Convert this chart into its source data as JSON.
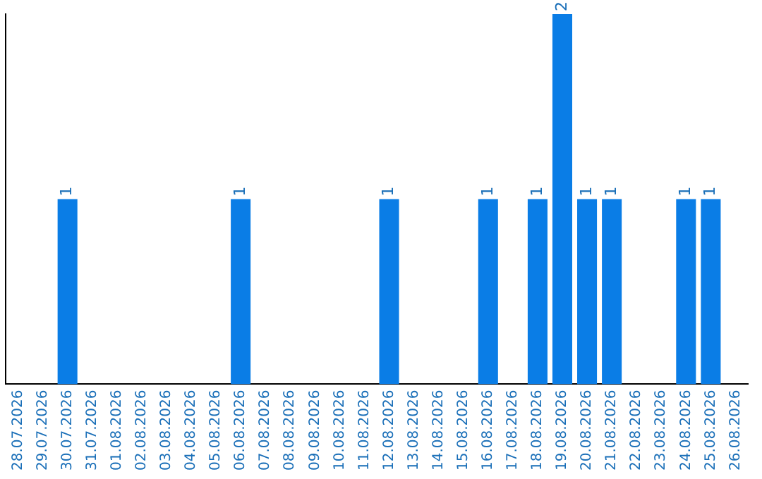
{
  "chart_data": {
    "type": "bar",
    "categories": [
      "28.07.2026",
      "29.07.2026",
      "30.07.2026",
      "31.07.2026",
      "01.08.2026",
      "02.08.2026",
      "03.08.2026",
      "04.08.2026",
      "05.08.2026",
      "06.08.2026",
      "07.08.2026",
      "08.08.2026",
      "09.08.2026",
      "10.08.2026",
      "11.08.2026",
      "12.08.2026",
      "13.08.2026",
      "14.08.2026",
      "15.08.2026",
      "16.08.2026",
      "17.08.2026",
      "18.08.2026",
      "19.08.2026",
      "20.08.2026",
      "21.08.2026",
      "22.08.2026",
      "23.08.2026",
      "24.08.2026",
      "25.08.2026",
      "26.08.2026"
    ],
    "values": [
      0,
      0,
      1,
      0,
      0,
      0,
      0,
      0,
      0,
      1,
      0,
      0,
      0,
      0,
      0,
      1,
      0,
      0,
      0,
      1,
      0,
      1,
      2,
      1,
      1,
      0,
      0,
      1,
      1,
      0
    ],
    "value_labels": [
      null,
      null,
      "1",
      null,
      null,
      null,
      null,
      null,
      null,
      "1",
      null,
      null,
      null,
      null,
      null,
      "1",
      null,
      null,
      null,
      "1",
      null,
      "1",
      "2",
      "1",
      "1",
      null,
      null,
      "1",
      "1",
      null
    ],
    "color": "#0a7de6",
    "grid": false,
    "legend": false,
    "tick_labels": "x"
  }
}
